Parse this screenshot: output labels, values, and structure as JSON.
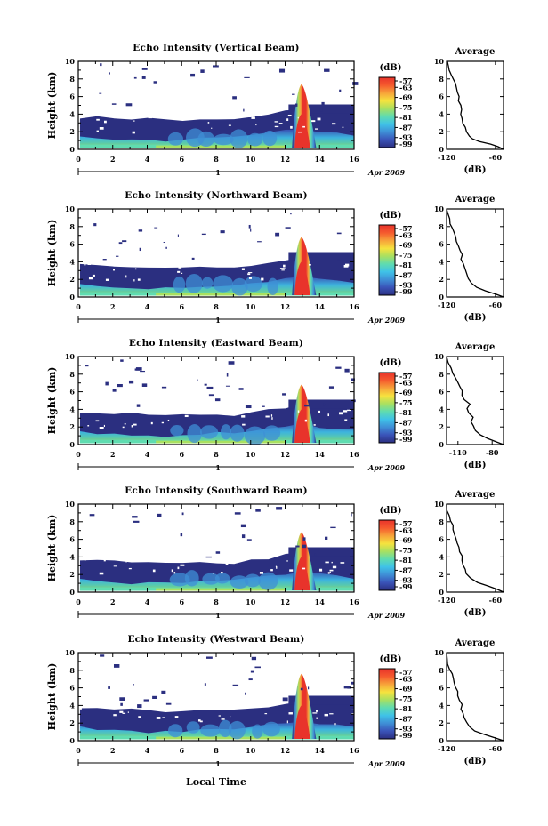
{
  "chart_data": [
    {
      "type": "heatmap",
      "title": "Echo Intensity (Vertical Beam)",
      "ylabel": "Height (km)",
      "x_ticks": [
        "0",
        "2",
        "4",
        "6",
        "8",
        "10",
        "12",
        "14",
        "16"
      ],
      "y_ticks": [
        "0",
        "2",
        "4",
        "6",
        "8",
        "10"
      ],
      "xlim": [
        0,
        16
      ],
      "ylim": [
        0,
        10
      ],
      "date_day": "1",
      "date_label": "Apr 2009",
      "colorbar": {
        "unit": "(dB)",
        "ticks": [
          "-57",
          "-63",
          "-69",
          "-75",
          "-81",
          "-87",
          "-93",
          "-99"
        ],
        "range": [
          -99,
          -57
        ]
      },
      "average": {
        "title": "Average",
        "xlabel": "(dB)",
        "x_ticks": [
          "-120",
          "-60"
        ],
        "y_ticks": [
          "0",
          "2",
          "4",
          "6",
          "8",
          "10"
        ],
        "xlim": [
          -120,
          -50
        ],
        "ylim": [
          0,
          10
        ],
        "profile": [
          [
            -50,
            0
          ],
          [
            -56,
            0.3
          ],
          [
            -66,
            0.6
          ],
          [
            -80,
            0.9
          ],
          [
            -88,
            1.2
          ],
          [
            -92,
            1.5
          ],
          [
            -96,
            2.0
          ],
          [
            -97,
            2.5
          ],
          [
            -100,
            3.0
          ],
          [
            -101,
            3.5
          ],
          [
            -102,
            4.0
          ],
          [
            -102,
            4.5
          ],
          [
            -103,
            5.0
          ],
          [
            -105,
            5.5
          ],
          [
            -104,
            6.0
          ],
          [
            -107,
            6.5
          ],
          [
            -108,
            7.0
          ],
          [
            -110,
            7.5
          ],
          [
            -112,
            8.0
          ],
          [
            -114,
            8.5
          ],
          [
            -117,
            9.0
          ],
          [
            -118,
            9.5
          ],
          [
            -119,
            10.0
          ]
        ]
      }
    },
    {
      "type": "heatmap",
      "title": "Echo Intensity (Northward Beam)",
      "ylabel": "Height (km)",
      "x_ticks": [
        "0",
        "2",
        "4",
        "6",
        "8",
        "10",
        "12",
        "14",
        "16"
      ],
      "y_ticks": [
        "0",
        "2",
        "4",
        "6",
        "8",
        "10"
      ],
      "xlim": [
        0,
        16
      ],
      "ylim": [
        0,
        10
      ],
      "date_day": "1",
      "date_label": "Apr 2009",
      "colorbar": {
        "unit": "(dB)",
        "ticks": [
          "-57",
          "-63",
          "-69",
          "-75",
          "-81",
          "-87",
          "-93",
          "-99"
        ],
        "range": [
          -99,
          -57
        ]
      },
      "average": {
        "title": "Average",
        "xlabel": "(dB)",
        "x_ticks": [
          "-120",
          "-60"
        ],
        "y_ticks": [
          "0",
          "2",
          "4",
          "6",
          "8",
          "10"
        ],
        "xlim": [
          -120,
          -50
        ],
        "ylim": [
          0,
          10
        ],
        "profile": [
          [
            -50,
            0
          ],
          [
            -58,
            0.3
          ],
          [
            -72,
            0.7
          ],
          [
            -84,
            1.1
          ],
          [
            -90,
            1.6
          ],
          [
            -94,
            2.1
          ],
          [
            -96,
            2.6
          ],
          [
            -98,
            3.2
          ],
          [
            -100,
            3.8
          ],
          [
            -102,
            4.3
          ],
          [
            -101,
            4.8
          ],
          [
            -104,
            5.3
          ],
          [
            -106,
            5.8
          ],
          [
            -108,
            6.3
          ],
          [
            -109,
            6.8
          ],
          [
            -111,
            7.3
          ],
          [
            -113,
            7.8
          ],
          [
            -115,
            8.3
          ],
          [
            -117,
            8.9
          ],
          [
            -119,
            9.5
          ],
          [
            -120,
            10.0
          ]
        ]
      }
    },
    {
      "type": "heatmap",
      "title": "Echo Intensity (Eastward Beam)",
      "ylabel": "Height (km)",
      "x_ticks": [
        "0",
        "2",
        "4",
        "6",
        "8",
        "10",
        "12",
        "14",
        "16"
      ],
      "y_ticks": [
        "0",
        "2",
        "4",
        "6",
        "8",
        "10"
      ],
      "xlim": [
        0,
        16
      ],
      "ylim": [
        0,
        10
      ],
      "date_day": "1",
      "date_label": "Apr 2009",
      "colorbar": {
        "unit": "(dB)",
        "ticks": [
          "-57",
          "-63",
          "-69",
          "-75",
          "-81",
          "-87",
          "-93",
          "-99"
        ],
        "range": [
          -99,
          -57
        ]
      },
      "average": {
        "title": "Average",
        "xlabel": "(dB)",
        "x_ticks": [
          "-110",
          "-80"
        ],
        "y_ticks": [
          "0",
          "2",
          "4",
          "6",
          "8",
          "10"
        ],
        "xlim": [
          -120,
          -70
        ],
        "ylim": [
          0,
          10
        ],
        "profile": [
          [
            -70,
            0
          ],
          [
            -76,
            0.3
          ],
          [
            -84,
            0.7
          ],
          [
            -90,
            1.1
          ],
          [
            -94,
            1.6
          ],
          [
            -96,
            2.1
          ],
          [
            -98,
            2.6
          ],
          [
            -97,
            3.1
          ],
          [
            -100,
            3.6
          ],
          [
            -102,
            4.1
          ],
          [
            -100,
            4.6
          ],
          [
            -104,
            5.1
          ],
          [
            -106,
            5.6
          ],
          [
            -107,
            6.1
          ],
          [
            -109,
            6.6
          ],
          [
            -111,
            7.1
          ],
          [
            -112,
            7.6
          ],
          [
            -114,
            8.1
          ],
          [
            -116,
            8.7
          ],
          [
            -118,
            9.3
          ],
          [
            -120,
            10.0
          ]
        ]
      }
    },
    {
      "type": "heatmap",
      "title": "Echo Intensity (Southward Beam)",
      "ylabel": "Height (km)",
      "x_ticks": [
        "0",
        "2",
        "4",
        "6",
        "8",
        "10",
        "12",
        "14",
        "16"
      ],
      "y_ticks": [
        "0",
        "2",
        "4",
        "6",
        "8",
        "10"
      ],
      "xlim": [
        0,
        16
      ],
      "ylim": [
        0,
        10
      ],
      "date_day": "1",
      "date_label": "Apr 2009",
      "colorbar": {
        "unit": "(dB)",
        "ticks": [
          "-57",
          "-63",
          "-69",
          "-75",
          "-81",
          "-87",
          "-93",
          "-99"
        ],
        "range": [
          -99,
          -57
        ]
      },
      "average": {
        "title": "Average",
        "xlabel": "(dB)",
        "x_ticks": [
          "-120",
          "-60"
        ],
        "y_ticks": [
          "0",
          "2",
          "4",
          "6",
          "8",
          "10"
        ],
        "xlim": [
          -120,
          -50
        ],
        "ylim": [
          0,
          10
        ],
        "profile": [
          [
            -50,
            0
          ],
          [
            -58,
            0.3
          ],
          [
            -70,
            0.7
          ],
          [
            -82,
            1.1
          ],
          [
            -90,
            1.6
          ],
          [
            -95,
            2.1
          ],
          [
            -97,
            2.6
          ],
          [
            -99,
            3.1
          ],
          [
            -101,
            3.6
          ],
          [
            -100,
            4.1
          ],
          [
            -103,
            4.6
          ],
          [
            -105,
            5.1
          ],
          [
            -107,
            5.6
          ],
          [
            -108,
            6.1
          ],
          [
            -110,
            6.6
          ],
          [
            -112,
            7.1
          ],
          [
            -113,
            7.6
          ],
          [
            -115,
            8.1
          ],
          [
            -117,
            8.7
          ],
          [
            -119,
            9.3
          ],
          [
            -120,
            10.0
          ]
        ]
      }
    },
    {
      "type": "heatmap",
      "title": "Echo Intensity (Westward Beam)",
      "ylabel": "Height (km)",
      "xlabel": "Local Time",
      "x_ticks": [
        "0",
        "2",
        "4",
        "6",
        "8",
        "10",
        "12",
        "14",
        "16"
      ],
      "y_ticks": [
        "0",
        "2",
        "4",
        "6",
        "8",
        "10"
      ],
      "xlim": [
        0,
        16
      ],
      "ylim": [
        0,
        10
      ],
      "date_day": "1",
      "date_label": "Apr 2009",
      "colorbar": {
        "unit": "(dB)",
        "ticks": [
          "-57",
          "-63",
          "-69",
          "-75",
          "-81",
          "-87",
          "-93",
          "-99"
        ],
        "range": [
          -99,
          -57
        ]
      },
      "average": {
        "title": "Average",
        "xlabel": "(dB)",
        "x_ticks": [
          "-120",
          "-60"
        ],
        "y_ticks": [
          "0",
          "2",
          "4",
          "6",
          "8",
          "10"
        ],
        "xlim": [
          -120,
          -50
        ],
        "ylim": [
          0,
          10
        ],
        "profile": [
          [
            -50,
            0
          ],
          [
            -60,
            0.3
          ],
          [
            -74,
            0.7
          ],
          [
            -86,
            1.1
          ],
          [
            -92,
            1.6
          ],
          [
            -96,
            2.1
          ],
          [
            -98,
            2.6
          ],
          [
            -100,
            3.1
          ],
          [
            -102,
            3.6
          ],
          [
            -101,
            4.1
          ],
          [
            -104,
            4.6
          ],
          [
            -106,
            5.1
          ],
          [
            -107,
            5.6
          ],
          [
            -109,
            6.1
          ],
          [
            -111,
            6.6
          ],
          [
            -112,
            7.1
          ],
          [
            -114,
            7.6
          ],
          [
            -116,
            8.1
          ],
          [
            -118,
            8.7
          ],
          [
            -119,
            9.3
          ],
          [
            -120,
            10.0
          ]
        ]
      }
    }
  ],
  "colors": {
    "colorbar_stops": [
      "#2b2f80",
      "#3a53b8",
      "#3f8fd6",
      "#3fc2e8",
      "#5fdcb0",
      "#a9e060",
      "#f6e23e",
      "#f7a33a",
      "#f55a2e",
      "#e8332b"
    ],
    "background_band": "#2b2f80"
  }
}
